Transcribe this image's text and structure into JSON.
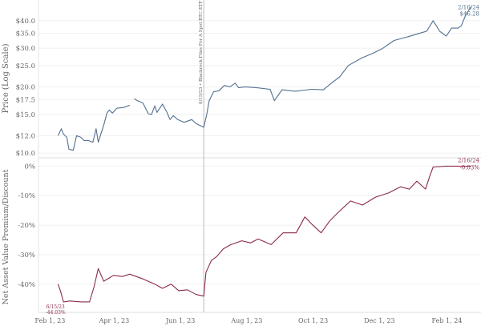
{
  "chart_data": [
    {
      "type": "line",
      "panel": "top",
      "ylabel": "Price (Log Scale)",
      "yscale": "log",
      "ylim": [
        9.6,
        48
      ],
      "yticks": [
        10,
        12,
        15,
        17.5,
        20,
        25,
        30,
        35,
        40
      ],
      "ytick_labels": [
        "$10.0",
        "$12.0",
        "$15.0",
        "$17.5",
        "$20.0",
        "$25.0",
        "$30.0",
        "$35.0",
        "$40.0"
      ],
      "color": "#52708f",
      "grid": true,
      "end_label": {
        "date": "2/16/24",
        "value": "$46.28"
      },
      "series": [
        {
          "name": "Price",
          "points": [
            [
              "2023-02-01",
              12.0
            ],
            [
              "2023-02-04",
              12.9
            ],
            [
              "2023-02-06",
              12.2
            ],
            [
              "2023-02-09",
              11.8
            ],
            [
              "2023-02-11",
              10.4
            ],
            [
              "2023-02-15",
              10.3
            ],
            [
              "2023-02-18",
              12.0
            ],
            [
              "2023-02-22",
              11.8
            ],
            [
              "2023-02-25",
              11.4
            ],
            [
              "2023-03-01",
              11.4
            ],
            [
              "2023-03-05",
              11.2
            ],
            [
              "2023-03-08",
              12.9
            ],
            [
              "2023-03-10",
              11.2
            ],
            [
              "2023-03-15",
              13.4
            ],
            [
              "2023-03-18",
              15.2
            ],
            [
              "2023-03-20",
              15.7
            ],
            [
              "2023-03-23",
              15.2
            ],
            [
              "2023-03-27",
              16.0
            ],
            [
              "2023-04-02",
              16.1
            ],
            [
              "2023-04-08",
              16.5
            ],
            null,
            [
              "2023-04-12",
              17.7
            ],
            [
              "2023-04-14",
              17.4
            ],
            [
              "2023-04-20",
              16.9
            ],
            [
              "2023-04-25",
              15.1
            ],
            [
              "2023-04-28",
              15.0
            ],
            [
              "2023-05-01",
              16.4
            ],
            [
              "2023-05-03",
              15.3
            ],
            [
              "2023-05-08",
              16.7
            ],
            [
              "2023-05-12",
              15.4
            ],
            [
              "2023-05-15",
              14.2
            ],
            [
              "2023-05-18",
              14.8
            ],
            [
              "2023-05-22",
              14.2
            ],
            [
              "2023-05-28",
              13.8
            ],
            [
              "2023-06-04",
              14.2
            ],
            [
              "2023-06-08",
              13.6
            ],
            [
              "2023-06-15",
              13.1
            ],
            [
              "2023-06-18",
              15.2
            ],
            [
              "2023-06-20",
              17.3
            ],
            [
              "2023-06-24",
              19.0
            ],
            [
              "2023-06-29",
              19.2
            ],
            [
              "2023-07-04",
              20.3
            ],
            [
              "2023-07-09",
              20.0
            ],
            [
              "2023-07-14",
              20.8
            ],
            [
              "2023-07-17",
              19.8
            ],
            [
              "2023-07-23",
              20.0
            ],
            [
              "2023-08-03",
              19.8
            ],
            [
              "2023-08-15",
              19.5
            ],
            [
              "2023-08-19",
              17.3
            ],
            [
              "2023-08-26",
              19.4
            ],
            [
              "2023-09-07",
              19.1
            ],
            [
              "2023-09-22",
              19.5
            ],
            [
              "2023-10-03",
              19.4
            ],
            [
              "2023-10-11",
              20.9
            ],
            [
              "2023-10-18",
              22.2
            ],
            [
              "2023-10-26",
              25.0
            ],
            [
              "2023-11-07",
              27.0
            ],
            [
              "2023-11-18",
              28.5
            ],
            [
              "2023-11-26",
              29.8
            ],
            [
              "2023-12-07",
              32.5
            ],
            [
              "2023-12-18",
              33.6
            ],
            [
              "2023-12-30",
              35.0
            ],
            [
              "2024-01-06",
              35.8
            ],
            [
              "2024-01-12",
              40.0
            ],
            [
              "2024-01-18",
              35.8
            ],
            [
              "2024-01-24",
              34.0
            ],
            [
              "2024-01-29",
              37.0
            ],
            [
              "2024-02-04",
              37.0
            ],
            [
              "2024-02-07",
              38.0
            ],
            [
              "2024-02-11",
              42.5
            ],
            [
              "2024-02-16",
              46.28
            ]
          ]
        }
      ]
    },
    {
      "type": "line",
      "panel": "bottom",
      "ylabel": "Net Asset Value Premium/Discount",
      "ylim": [
        -49,
        2
      ],
      "yticks": [
        0,
        -10,
        -20,
        -30,
        -40
      ],
      "ytick_labels": [
        "0%",
        "-10%",
        "-20%",
        "-30%",
        "-40%"
      ],
      "color": "#8c2a4c",
      "grid": true,
      "min_label": {
        "date": "6/15/23",
        "value": "-44.03%"
      },
      "end_label": {
        "date": "2/16/24",
        "value": "-0.03%"
      },
      "series": [
        {
          "name": "NAV Premium/Discount",
          "points": [
            [
              "2023-02-01",
              -40
            ],
            [
              "2023-02-03",
              -42
            ],
            [
              "2023-02-06",
              -46
            ],
            [
              "2023-02-12",
              -45.7
            ],
            [
              "2023-02-22",
              -46
            ],
            [
              "2023-03-02",
              -46
            ],
            [
              "2023-03-06",
              -41
            ],
            [
              "2023-03-10",
              -34.7
            ],
            [
              "2023-03-15",
              -39
            ],
            [
              "2023-03-24",
              -37
            ],
            [
              "2023-04-01",
              -37.4
            ],
            [
              "2023-04-08",
              -36.6
            ],
            [
              "2023-04-20",
              -38.2
            ],
            [
              "2023-05-01",
              -40
            ],
            [
              "2023-05-08",
              -41.4
            ],
            [
              "2023-05-16",
              -40
            ],
            [
              "2023-05-23",
              -42.2
            ],
            [
              "2023-05-31",
              -41.9
            ],
            [
              "2023-06-08",
              -43.5
            ],
            [
              "2023-06-15",
              -44.03
            ],
            [
              "2023-06-17",
              -36
            ],
            [
              "2023-06-22",
              -32
            ],
            [
              "2023-06-27",
              -30.6
            ],
            [
              "2023-07-03",
              -28
            ],
            [
              "2023-07-10",
              -26.6
            ],
            [
              "2023-07-20",
              -25.3
            ],
            [
              "2023-07-28",
              -26
            ],
            [
              "2023-08-04",
              -24.7
            ],
            [
              "2023-08-16",
              -26.6
            ],
            [
              "2023-08-27",
              -22.6
            ],
            [
              "2023-09-08",
              -22.6
            ],
            [
              "2023-09-16",
              -17.2
            ],
            [
              "2023-09-23",
              -19.9
            ],
            [
              "2023-10-01",
              -22.6
            ],
            [
              "2023-10-09",
              -18.5
            ],
            [
              "2023-10-16",
              -15.9
            ],
            [
              "2023-10-28",
              -11.8
            ],
            [
              "2023-11-08",
              -13.2
            ],
            [
              "2023-11-20",
              -10.5
            ],
            [
              "2023-12-02",
              -9.1
            ],
            [
              "2023-12-13",
              -7
            ],
            [
              "2023-12-21",
              -7.8
            ],
            [
              "2023-12-28",
              -5.1
            ],
            [
              "2024-01-05",
              -7.8
            ],
            [
              "2024-01-09",
              -3.2
            ],
            [
              "2024-01-12",
              -0.3
            ],
            [
              "2024-01-24",
              0
            ],
            [
              "2024-02-16",
              -0.03
            ]
          ]
        }
      ]
    }
  ],
  "x_axis": {
    "ticks": [
      "2023-02-01",
      "2023-04-01",
      "2023-06-01",
      "2023-08-01",
      "2023-10-01",
      "2023-12-01",
      "2024-02-01"
    ],
    "tick_labels": [
      "Feb 1, 23",
      "Apr 1, 23",
      "Jun 1, 23",
      "Aug 1, 23",
      "Oct 1, 23",
      "Dec 1, 23",
      "Feb 1, 24"
    ],
    "domain": [
      "2023-01-14",
      "2024-02-25"
    ]
  },
  "event": {
    "date": "2023-06-15",
    "label": "6/15/23 • Blackrock Files For A Spot BTC ETF"
  }
}
